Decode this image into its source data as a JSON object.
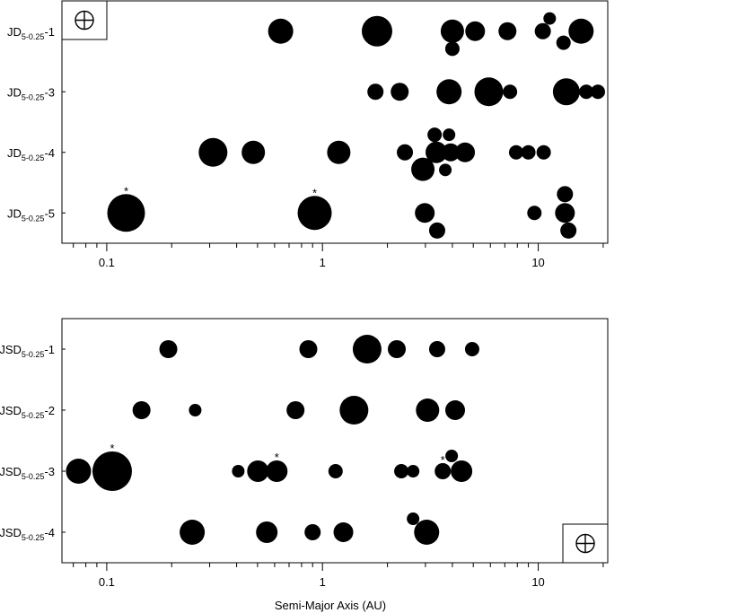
{
  "chart_data": [
    {
      "type": "scatter",
      "color": "#000000",
      "log_x": true,
      "symbol_corner": "top-left",
      "xlim": [
        0.062,
        21
      ],
      "ylim": [
        0.5,
        4.5
      ],
      "xticks": [
        0.1,
        1,
        10
      ],
      "minor_xticks": [
        0.07,
        0.08,
        0.09,
        0.2,
        0.3,
        0.4,
        0.5,
        0.6,
        0.7,
        0.8,
        0.9,
        2,
        3,
        4,
        5,
        6,
        7,
        8,
        9,
        20
      ],
      "yticks": [
        {
          "value": 4,
          "label": {
            "base": "JD",
            "sub": "5-0.25",
            "suffix": "-1"
          }
        },
        {
          "value": 3,
          "label": {
            "base": "JD",
            "sub": "5-0.25",
            "suffix": "-3"
          }
        },
        {
          "value": 2,
          "label": {
            "base": "JD",
            "sub": "5-0.25",
            "suffix": "-4"
          }
        },
        {
          "value": 1,
          "label": {
            "base": "JD",
            "sub": "5-0.25",
            "suffix": "-5"
          }
        }
      ],
      "x": [
        0.64,
        1.79,
        4.0,
        4.0,
        5.1,
        7.2,
        10.5,
        11.3,
        13.1,
        15.8,
        1.76,
        2.28,
        3.86,
        5.9,
        7.4,
        13.5,
        16.7,
        18.9,
        0.311,
        0.478,
        1.19,
        2.41,
        3.31,
        3.86,
        3.37,
        3.93,
        4.58,
        2.92,
        3.71,
        7.9,
        9.0,
        10.6,
        0.123,
        0.92,
        2.98,
        3.4,
        9.6,
        13.3,
        13.3,
        13.8
      ],
      "y": [
        4,
        4,
        4,
        3.71,
        4,
        4,
        4,
        4.21,
        3.81,
        4,
        3,
        3,
        3,
        3,
        3,
        3,
        3,
        3,
        2,
        2,
        2,
        2,
        2.29,
        2.29,
        2,
        2,
        2,
        1.72,
        1.71,
        2,
        2,
        2,
        1,
        1,
        1,
        0.71,
        1,
        1.31,
        1,
        0.71
      ],
      "sizes": [
        14,
        17,
        13,
        8,
        11,
        10,
        9,
        7,
        8,
        14,
        9,
        10,
        14,
        16,
        8,
        15,
        8,
        8,
        16,
        13,
        13,
        9,
        8,
        7,
        12,
        10,
        11,
        13,
        7,
        8,
        8,
        8,
        21,
        19,
        11,
        9,
        8,
        9,
        11,
        9
      ],
      "point_labels": [
        null,
        null,
        null,
        null,
        null,
        null,
        null,
        null,
        null,
        null,
        null,
        null,
        null,
        null,
        null,
        null,
        null,
        null,
        null,
        null,
        null,
        null,
        null,
        null,
        null,
        null,
        null,
        null,
        null,
        null,
        null,
        null,
        "*",
        "*",
        null,
        null,
        null,
        null,
        null,
        null
      ]
    },
    {
      "type": "scatter",
      "color": "#000000",
      "log_x": true,
      "symbol_corner": "bottom-right",
      "xlabel": "Semi-Major Axis (AU)",
      "xlim": [
        0.062,
        21
      ],
      "ylim": [
        0.5,
        4.5
      ],
      "xticks": [
        0.1,
        1,
        10
      ],
      "minor_xticks": [
        0.07,
        0.08,
        0.09,
        0.2,
        0.3,
        0.4,
        0.5,
        0.6,
        0.7,
        0.8,
        0.9,
        2,
        3,
        4,
        5,
        6,
        7,
        8,
        9,
        20
      ],
      "yticks": [
        {
          "value": 4,
          "label": {
            "base": "JSD",
            "sub": "5-0.25",
            "suffix": "-1"
          }
        },
        {
          "value": 3,
          "label": {
            "base": "JSD",
            "sub": "5-0.25",
            "suffix": "-2"
          }
        },
        {
          "value": 2,
          "label": {
            "base": "JSD",
            "sub": "5-0.25",
            "suffix": "-3"
          }
        },
        {
          "value": 1,
          "label": {
            "base": "JSD",
            "sub": "5-0.25",
            "suffix": "-4"
          }
        }
      ],
      "x": [
        0.193,
        0.86,
        1.61,
        2.21,
        3.4,
        4.94,
        0.145,
        0.257,
        0.75,
        1.4,
        3.07,
        4.12,
        0.074,
        0.106,
        0.407,
        0.502,
        0.614,
        1.15,
        2.32,
        2.63,
        3.61,
        3.97,
        4.41,
        0.249,
        0.552,
        0.9,
        1.25,
        2.63,
        3.04
      ],
      "y": [
        4,
        4,
        4,
        4,
        4,
        4,
        3,
        3,
        3,
        3,
        3,
        3,
        2,
        2,
        2,
        2,
        2,
        2,
        2,
        2,
        2,
        2.25,
        2,
        1,
        1,
        1,
        1,
        1.22,
        1
      ],
      "sizes": [
        10,
        10,
        16,
        10,
        9,
        8,
        10,
        7,
        10,
        16,
        13,
        11,
        14,
        22,
        7,
        12,
        12,
        8,
        8,
        7,
        9,
        7,
        12,
        14,
        12,
        9,
        11,
        7,
        14
      ],
      "point_labels": [
        null,
        null,
        null,
        null,
        null,
        null,
        null,
        null,
        null,
        null,
        null,
        null,
        null,
        "*",
        null,
        null,
        "*",
        null,
        null,
        null,
        "*",
        null,
        null,
        null,
        null,
        null,
        null,
        null,
        null
      ]
    }
  ]
}
